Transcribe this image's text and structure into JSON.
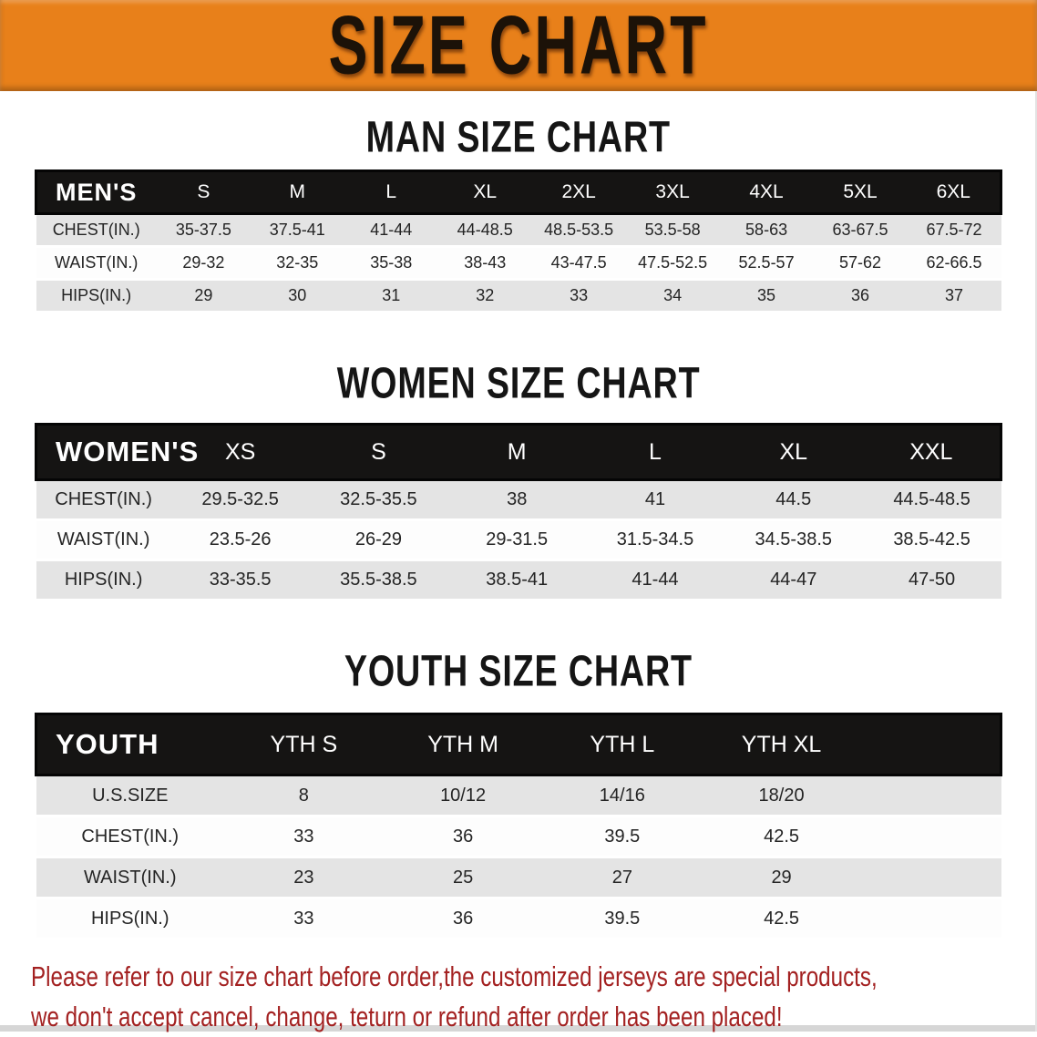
{
  "banner": {
    "title": "SIZE CHART",
    "bg_color": "#e8801a",
    "text_color": "#1c1208"
  },
  "sections": {
    "men": {
      "title": "MAN SIZE CHART",
      "table": {
        "header_label": "MEN'S",
        "columns": [
          "S",
          "M",
          "L",
          "XL",
          "2XL",
          "3XL",
          "4XL",
          "5XL",
          "6XL"
        ],
        "rows": [
          {
            "label": "CHEST(IN.)",
            "values": [
              "35-37.5",
              "37.5-41",
              "41-44",
              "44-48.5",
              "48.5-53.5",
              "53.5-58",
              "58-63",
              "63-67.5",
              "67.5-72"
            ]
          },
          {
            "label": "WAIST(IN.)",
            "values": [
              "29-32",
              "32-35",
              "35-38",
              "38-43",
              "43-47.5",
              "47.5-52.5",
              "52.5-57",
              "57-62",
              "62-66.5"
            ]
          },
          {
            "label": "HIPS(IN.)",
            "values": [
              "29",
              "30",
              "31",
              "32",
              "33",
              "34",
              "35",
              "36",
              "37"
            ]
          }
        ]
      }
    },
    "women": {
      "title": "WOMEN SIZE CHART",
      "table": {
        "header_label": "WOMEN'S",
        "columns": [
          "XS",
          "S",
          "M",
          "L",
          "XL",
          "XXL"
        ],
        "rows": [
          {
            "label": "CHEST(IN.)",
            "values": [
              "29.5-32.5",
              "32.5-35.5",
              "38",
              "41",
              "44.5",
              "44.5-48.5"
            ]
          },
          {
            "label": "WAIST(IN.)",
            "values": [
              "23.5-26",
              "26-29",
              "29-31.5",
              "31.5-34.5",
              "34.5-38.5",
              "38.5-42.5"
            ]
          },
          {
            "label": "HIPS(IN.)",
            "values": [
              "33-35.5",
              "35.5-38.5",
              "38.5-41",
              "41-44",
              "44-47",
              "47-50"
            ]
          }
        ]
      }
    },
    "youth": {
      "title": "YOUTH SIZE CHART",
      "table": {
        "header_label": "YOUTH",
        "columns": [
          "YTH S",
          "YTH M",
          "YTH L",
          "YTH XL"
        ],
        "rows": [
          {
            "label": "U.S.SIZE",
            "values": [
              "8",
              "10/12",
              "14/16",
              "18/20"
            ]
          },
          {
            "label": "CHEST(IN.)",
            "values": [
              "33",
              "36",
              "39.5",
              "42.5"
            ]
          },
          {
            "label": "WAIST(IN.)",
            "values": [
              "23",
              "25",
              "27",
              "29"
            ]
          },
          {
            "label": "HIPS(IN.)",
            "values": [
              "33",
              "36",
              "39.5",
              "42.5"
            ]
          }
        ]
      }
    }
  },
  "disclaimer": {
    "line1": "Please refer to our size chart before order,the customized jerseys are special products,",
    "line2": "we don't accept cancel, change, teturn or refund after order has been placed!",
    "color": "#a32121"
  }
}
